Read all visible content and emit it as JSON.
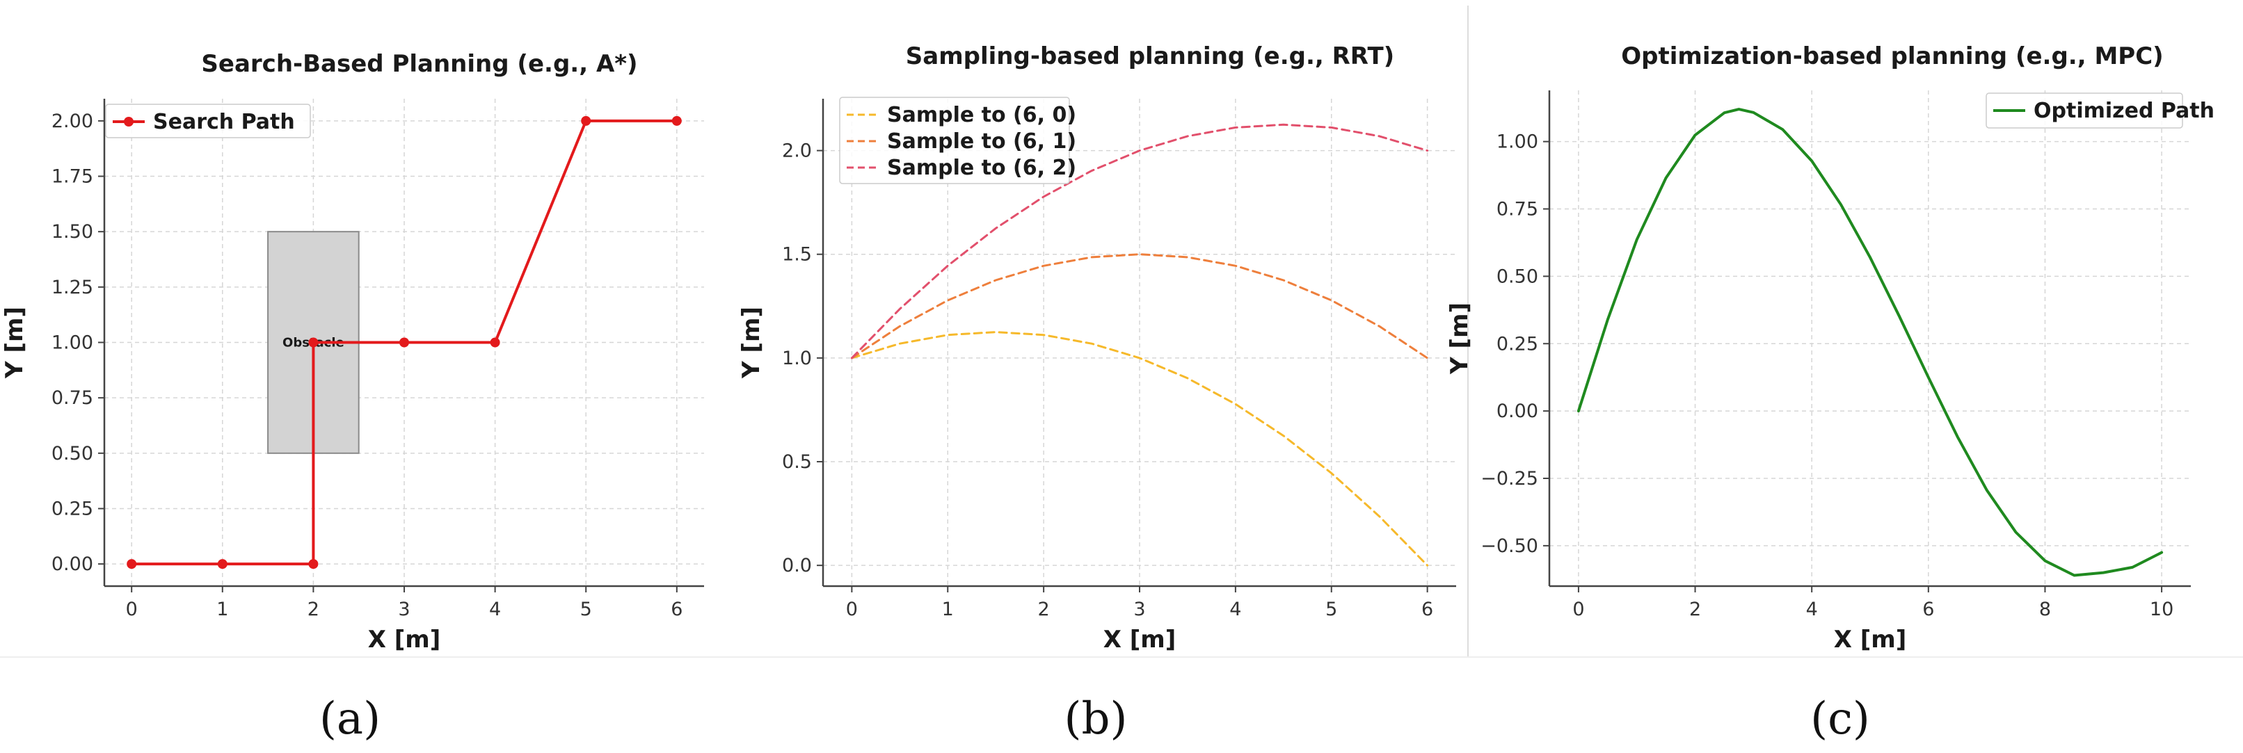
{
  "panel_labels": [
    "(a)",
    "(b)",
    "(c)"
  ],
  "colors": {
    "divider": "#dddddd"
  },
  "chart_data": [
    {
      "type": "line",
      "title": "Search-Based Planning (e.g., A*)",
      "xlabel": "X [m]",
      "ylabel": "Y [m]",
      "xlim": [
        -0.3,
        6.3
      ],
      "ylim": [
        -0.1,
        2.1
      ],
      "xticks": [
        0,
        1,
        2,
        3,
        4,
        5,
        6
      ],
      "yticks": [
        0.0,
        0.25,
        0.5,
        0.75,
        1.0,
        1.25,
        1.5,
        1.75,
        2.0
      ],
      "ytick_labels": [
        "0.00",
        "0.25",
        "0.50",
        "0.75",
        "1.00",
        "1.25",
        "1.50",
        "1.75",
        "2.00"
      ],
      "grid": true,
      "legend_position": "top-left",
      "series": [
        {
          "name": "Search Path",
          "color": "#e31a1c",
          "style": "solid",
          "markers": true,
          "x": [
            0,
            1,
            2,
            2,
            3,
            4,
            5,
            6
          ],
          "y": [
            0,
            0,
            0,
            1,
            1,
            1,
            2,
            2
          ]
        }
      ],
      "obstacle": {
        "label": "Obstacle",
        "x0": 1.5,
        "x1": 2.5,
        "y0": 0.5,
        "y1": 1.5,
        "color": "#d3d3d3"
      }
    },
    {
      "type": "line",
      "title": "Sampling-based planning (e.g., RRT)",
      "xlabel": "X [m]",
      "ylabel": "Y [m]",
      "xlim": [
        -0.3,
        6.3
      ],
      "ylim": [
        -0.1,
        2.25
      ],
      "xticks": [
        0,
        1,
        2,
        3,
        4,
        5,
        6
      ],
      "yticks": [
        0.0,
        0.5,
        1.0,
        1.5,
        2.0
      ],
      "ytick_labels": [
        "0.0",
        "0.5",
        "1.0",
        "1.5",
        "2.0"
      ],
      "grid": true,
      "legend_position": "top-left",
      "series": [
        {
          "name": "Sample to (6, 0)",
          "color": "#f6b92b",
          "style": "dashed",
          "x": [
            0,
            0.5,
            1,
            1.5,
            2,
            2.5,
            3,
            3.5,
            4,
            4.5,
            5,
            5.5,
            6
          ],
          "y": [
            1,
            1.0694,
            1.1111,
            1.125,
            1.1111,
            1.0694,
            1,
            0.9028,
            0.7778,
            0.625,
            0.4444,
            0.2361,
            0
          ]
        },
        {
          "name": "Sample to (6, 1)",
          "color": "#ee7f3c",
          "style": "dashed",
          "x": [
            0,
            0.5,
            1,
            1.5,
            2,
            2.5,
            3,
            3.5,
            4,
            4.5,
            5,
            5.5,
            6
          ],
          "y": [
            1,
            1.1528,
            1.2778,
            1.375,
            1.4444,
            1.4861,
            1.5,
            1.4861,
            1.4444,
            1.375,
            1.2778,
            1.1528,
            1
          ]
        },
        {
          "name": "Sample to (6, 2)",
          "color": "#e2506c",
          "style": "dashed",
          "x": [
            0,
            0.5,
            1,
            1.5,
            2,
            2.5,
            3,
            3.5,
            4,
            4.5,
            5,
            5.5,
            6
          ],
          "y": [
            1,
            1.2361,
            1.4444,
            1.625,
            1.7778,
            1.9028,
            2,
            2.0694,
            2.1111,
            2.125,
            2.1111,
            2.0694,
            2
          ]
        }
      ]
    },
    {
      "type": "line",
      "title": "Optimization-based planning (e.g., MPC)",
      "xlabel": "X [m]",
      "ylabel": "Y [m]",
      "xlim": [
        -0.5,
        10.5
      ],
      "ylim": [
        -0.65,
        1.19
      ],
      "xticks": [
        0,
        2,
        4,
        6,
        8,
        10
      ],
      "yticks": [
        -0.5,
        -0.25,
        0.0,
        0.25,
        0.5,
        0.75,
        1.0
      ],
      "ytick_labels": [
        "−0.50",
        "−0.25",
        "0.00",
        "0.25",
        "0.50",
        "0.75",
        "1.00"
      ],
      "grid": true,
      "legend_position": "top-right",
      "series": [
        {
          "name": "Optimized Path",
          "color": "#1f8a1f",
          "style": "solid",
          "x": [
            0,
            0.5,
            1,
            1.5,
            2,
            2.5,
            2.75,
            3,
            3.5,
            4,
            4.5,
            5,
            5.5,
            6,
            6.5,
            7,
            7.5,
            8,
            8.5,
            9,
            9.5,
            10
          ],
          "y": [
            0,
            0.339,
            0.636,
            0.865,
            1.024,
            1.107,
            1.12,
            1.108,
            1.045,
            0.928,
            0.766,
            0.57,
            0.352,
            0.125,
            -0.096,
            -0.293,
            -0.45,
            -0.556,
            -0.61,
            -0.6,
            -0.58,
            -0.525
          ]
        }
      ]
    }
  ]
}
